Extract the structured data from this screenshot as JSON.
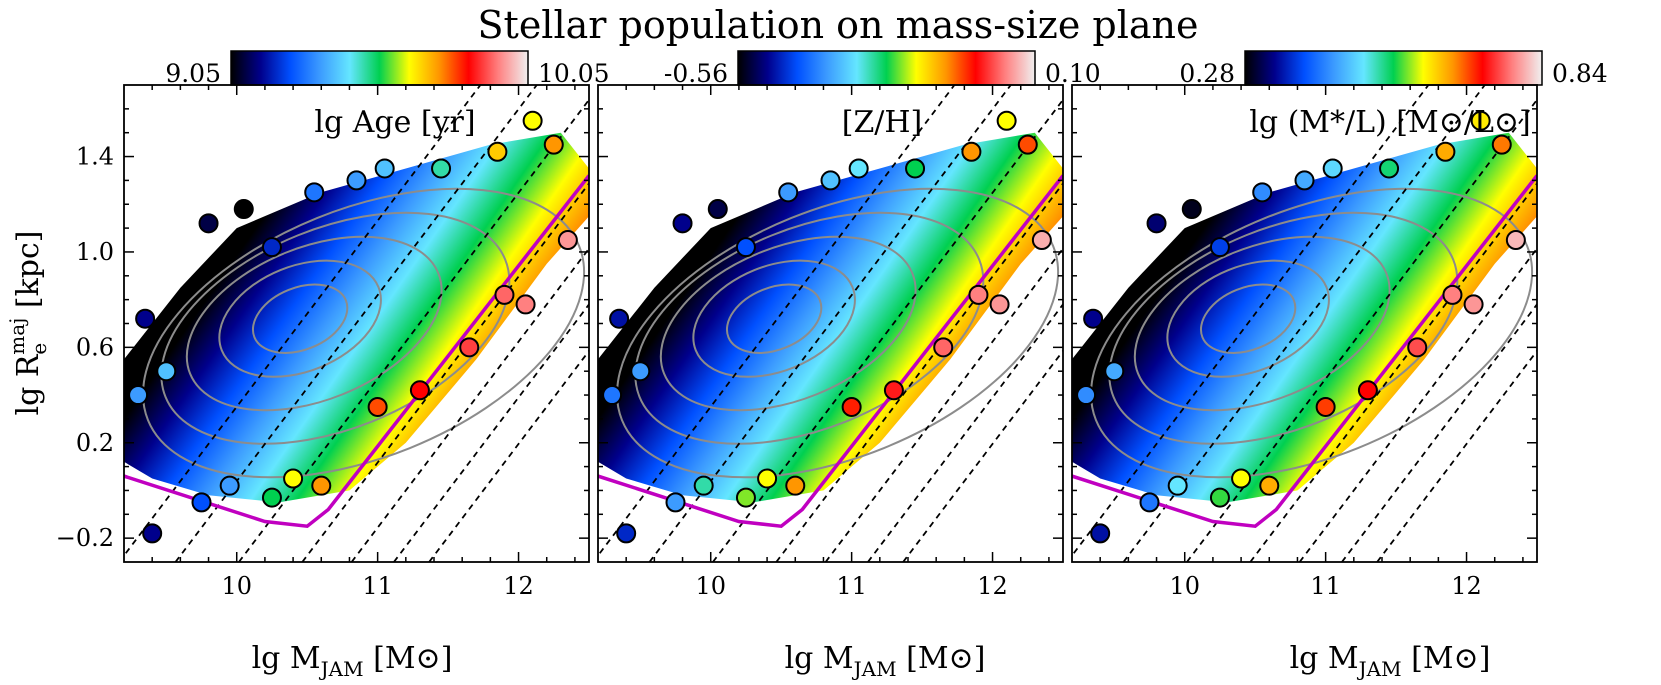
{
  "figure": {
    "title": "Stellar population on mass-size plane",
    "ylabel": "lg R_e^maj [kpc]",
    "ylabel_parts": {
      "main": "lg R",
      "sub": "e",
      "sup": "maj",
      "unit": " [kpc]"
    }
  },
  "chart_data": [
    {
      "type": "scatter",
      "panel_label": "lg Age [yr]",
      "colorbar": {
        "min": "9.05",
        "max": "10.05"
      },
      "xlabel": "lg M_JAM [M⊙]",
      "xlabel_parts": {
        "main": "lg M",
        "sub": "JAM",
        "unit": " [M⊙]"
      },
      "xlim": [
        9.2,
        12.5
      ],
      "ylim": [
        -0.3,
        1.7
      ],
      "xticks": [
        "10",
        "11",
        "12"
      ],
      "yticks": [
        "1.4",
        "1.0",
        "0.6",
        "0.2",
        "−0.2"
      ],
      "points": [
        [
          9.4,
          -0.18
        ],
        [
          9.75,
          -0.05
        ],
        [
          9.95,
          0.02
        ],
        [
          10.25,
          -0.03
        ],
        [
          10.4,
          0.05
        ],
        [
          10.6,
          0.02
        ],
        [
          11.0,
          0.35
        ],
        [
          11.3,
          0.42
        ],
        [
          11.65,
          0.6
        ],
        [
          11.9,
          0.82
        ],
        [
          12.05,
          0.78
        ],
        [
          12.35,
          1.05
        ],
        [
          12.25,
          1.45
        ],
        [
          12.1,
          1.55
        ],
        [
          11.85,
          1.42
        ],
        [
          11.45,
          1.35
        ],
        [
          11.05,
          1.35
        ],
        [
          10.85,
          1.3
        ],
        [
          10.55,
          1.25
        ],
        [
          10.05,
          1.18
        ],
        [
          9.8,
          1.12
        ],
        [
          10.25,
          1.02
        ],
        [
          9.35,
          0.72
        ],
        [
          9.3,
          0.4
        ],
        [
          9.5,
          0.5
        ]
      ],
      "point_values": [
        0.1,
        0.2,
        0.3,
        0.5,
        0.6,
        0.7,
        0.75,
        0.8,
        0.85,
        0.88,
        0.9,
        0.92,
        0.7,
        0.6,
        0.65,
        0.45,
        0.35,
        0.3,
        0.25,
        0.0,
        0.05,
        0.15,
        0.1,
        0.3,
        0.35
      ]
    },
    {
      "type": "scatter",
      "panel_label": "[Z/H]",
      "colorbar": {
        "min": "-0.56",
        "max": "0.10"
      },
      "xlabel": "lg M_JAM [M⊙]",
      "xlabel_parts": {
        "main": "lg M",
        "sub": "JAM",
        "unit": " [M⊙]"
      },
      "xlim": [
        9.2,
        12.5
      ],
      "ylim": [
        -0.3,
        1.7
      ],
      "xticks": [
        "10",
        "11",
        "12"
      ],
      "yticks": [
        "1.4",
        "1.0",
        "0.6",
        "0.2",
        "−0.2"
      ],
      "points": [
        [
          9.4,
          -0.18
        ],
        [
          9.75,
          -0.05
        ],
        [
          9.95,
          0.02
        ],
        [
          10.25,
          -0.03
        ],
        [
          10.4,
          0.05
        ],
        [
          10.6,
          0.02
        ],
        [
          11.0,
          0.35
        ],
        [
          11.3,
          0.42
        ],
        [
          11.65,
          0.6
        ],
        [
          11.9,
          0.82
        ],
        [
          12.05,
          0.78
        ],
        [
          12.35,
          1.05
        ],
        [
          12.25,
          1.45
        ],
        [
          12.1,
          1.55
        ],
        [
          11.85,
          1.42
        ],
        [
          11.45,
          1.35
        ],
        [
          11.05,
          1.35
        ],
        [
          10.85,
          1.3
        ],
        [
          10.55,
          1.25
        ],
        [
          10.05,
          1.18
        ],
        [
          9.8,
          1.12
        ],
        [
          10.25,
          1.02
        ],
        [
          9.35,
          0.72
        ],
        [
          9.3,
          0.4
        ],
        [
          9.5,
          0.5
        ]
      ],
      "point_values": [
        0.15,
        0.3,
        0.45,
        0.55,
        0.6,
        0.7,
        0.78,
        0.82,
        0.88,
        0.9,
        0.92,
        0.94,
        0.75,
        0.6,
        0.7,
        0.5,
        0.4,
        0.35,
        0.3,
        0.05,
        0.1,
        0.2,
        0.12,
        0.25,
        0.3
      ]
    },
    {
      "type": "scatter",
      "panel_label": "lg (M*/L) [M⊙/L⊙]",
      "colorbar": {
        "min": "0.28",
        "max": "0.84"
      },
      "xlabel": "lg M_JAM [M⊙]",
      "xlabel_parts": {
        "main": "lg M",
        "sub": "JAM",
        "unit": " [M⊙]"
      },
      "xlim": [
        9.2,
        12.5
      ],
      "ylim": [
        -0.3,
        1.7
      ],
      "xticks": [
        "10",
        "11",
        "12"
      ],
      "yticks": [
        "1.4",
        "1.0",
        "0.6",
        "0.2",
        "−0.2"
      ],
      "points": [
        [
          9.4,
          -0.18
        ],
        [
          9.75,
          -0.05
        ],
        [
          9.95,
          0.02
        ],
        [
          10.25,
          -0.03
        ],
        [
          10.4,
          0.05
        ],
        [
          10.6,
          0.02
        ],
        [
          11.0,
          0.35
        ],
        [
          11.3,
          0.42
        ],
        [
          11.65,
          0.6
        ],
        [
          11.9,
          0.82
        ],
        [
          12.05,
          0.78
        ],
        [
          12.35,
          1.05
        ],
        [
          12.25,
          1.45
        ],
        [
          12.1,
          1.55
        ],
        [
          11.85,
          1.42
        ],
        [
          11.45,
          1.35
        ],
        [
          11.05,
          1.35
        ],
        [
          10.85,
          1.3
        ],
        [
          10.55,
          1.25
        ],
        [
          10.05,
          1.18
        ],
        [
          9.8,
          1.12
        ],
        [
          10.25,
          1.02
        ],
        [
          9.35,
          0.72
        ],
        [
          9.3,
          0.4
        ],
        [
          9.5,
          0.5
        ]
      ],
      "point_values": [
        0.12,
        0.25,
        0.4,
        0.52,
        0.6,
        0.68,
        0.76,
        0.8,
        0.86,
        0.9,
        0.92,
        0.95,
        0.72,
        0.62,
        0.68,
        0.48,
        0.38,
        0.32,
        0.28,
        0.02,
        0.08,
        0.18,
        0.1,
        0.28,
        0.32
      ]
    }
  ],
  "colors": {
    "boundary": "#c000c0",
    "contour": "#8c8c8c",
    "guide": "#000000",
    "colormap": [
      "#000000",
      "#00008c",
      "#0050ff",
      "#3c9bff",
      "#64e6ff",
      "#00d050",
      "#ffff00",
      "#ff9600",
      "#ff0000",
      "#ff8080",
      "#f0f0f0"
    ]
  }
}
